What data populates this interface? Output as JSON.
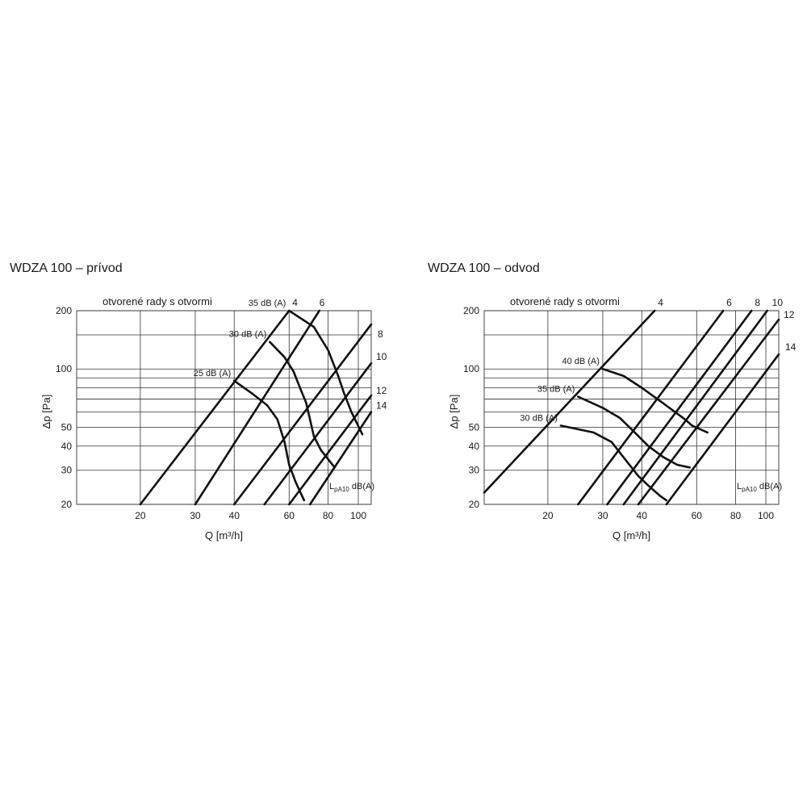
{
  "chart_data": [
    {
      "type": "line",
      "title": "WDZA 100 – prívod",
      "subtitle": "otvorené rady s otvormi",
      "xlabel": "Q [m³/h]",
      "ylabel": "Δp [Pa]",
      "xscale": "log",
      "yscale": "log",
      "xlim": [
        12.5,
        110
      ],
      "ylim": [
        20,
        200
      ],
      "x_ticks": [
        20,
        30,
        40,
        60,
        80,
        100
      ],
      "y_ticks": [
        20,
        30,
        40,
        50,
        100,
        200
      ],
      "y_grid": [
        20,
        30,
        40,
        50,
        60,
        70,
        80,
        90,
        100,
        150,
        200
      ],
      "note": {
        "base": "L",
        "sub": "pA10",
        "suffix": " dB(A)"
      },
      "series": [
        {
          "name": "4",
          "points": [
            [
              20,
              20
            ],
            [
              60,
              200
            ]
          ]
        },
        {
          "name": "6",
          "points": [
            [
              30,
              20
            ],
            [
              75,
              200
            ]
          ]
        },
        {
          "name": "8",
          "points": [
            [
              40,
              20
            ],
            [
              110,
              170
            ]
          ]
        },
        {
          "name": "10",
          "points": [
            [
              50,
              20
            ],
            [
              110,
              107
            ]
          ]
        },
        {
          "name": "12",
          "points": [
            [
              60,
              20
            ],
            [
              110,
              73
            ]
          ]
        },
        {
          "name": "14",
          "points": [
            [
              70,
              20
            ],
            [
              110,
              60
            ]
          ]
        }
      ],
      "noise_curves": [
        {
          "label": "35 dB (A)",
          "points": [
            [
              60,
              200
            ],
            [
              72,
              165
            ],
            [
              80,
              125
            ],
            [
              86,
              93
            ],
            [
              90,
              75
            ],
            [
              95,
              60
            ],
            [
              103,
              46
            ]
          ]
        },
        {
          "label": "30 dB (A)",
          "points": [
            [
              52,
              138
            ],
            [
              58,
              115
            ],
            [
              62,
              97
            ],
            [
              65,
              80
            ],
            [
              68,
              67
            ],
            [
              70,
              55
            ],
            [
              72,
              45
            ],
            [
              76,
              38
            ],
            [
              84,
              31
            ]
          ]
        },
        {
          "label": "25 dB (A)",
          "points": [
            [
              40,
              87
            ],
            [
              46,
              74
            ],
            [
              51,
              65
            ],
            [
              55,
              55
            ],
            [
              58,
              42
            ],
            [
              60,
              32
            ],
            [
              63,
              26
            ],
            [
              67,
              21
            ]
          ]
        }
      ]
    },
    {
      "type": "line",
      "title": "WDZA 100 – odvod",
      "subtitle": "otvorené rady s otvormi",
      "xlabel": "Q [m³/h]",
      "ylabel": "Δp [Pa]",
      "xscale": "log",
      "yscale": "log",
      "xlim": [
        12.5,
        110
      ],
      "ylim": [
        20,
        200
      ],
      "x_ticks": [
        20,
        30,
        40,
        60,
        80,
        100
      ],
      "y_ticks": [
        20,
        30,
        40,
        50,
        100,
        200
      ],
      "y_grid": [
        20,
        30,
        40,
        50,
        60,
        70,
        80,
        90,
        100,
        150,
        200
      ],
      "note": {
        "base": "L",
        "sub": "pA10",
        "suffix": " dB(A)"
      },
      "series": [
        {
          "name": "4",
          "points": [
            [
              12.5,
              23
            ],
            [
              44,
              200
            ]
          ]
        },
        {
          "name": "6",
          "points": [
            [
              25,
              20
            ],
            [
              73,
              200
            ]
          ]
        },
        {
          "name": "8",
          "points": [
            [
              31,
              20
            ],
            [
              90,
              200
            ]
          ]
        },
        {
          "name": "10",
          "points": [
            [
              35,
              20
            ],
            [
              101,
              200
            ]
          ]
        },
        {
          "name": "12",
          "points": [
            [
              39,
              20
            ],
            [
              110,
              180
            ]
          ]
        },
        {
          "name": "14",
          "points": [
            [
              48,
              20
            ],
            [
              110,
              119
            ]
          ]
        }
      ],
      "noise_curves": [
        {
          "label": "40 dB (A)",
          "points": [
            [
              30,
              100
            ],
            [
              35,
              92
            ],
            [
              40,
              80
            ],
            [
              46,
              68
            ],
            [
              55,
              55
            ],
            [
              58,
              51
            ],
            [
              65,
              47
            ]
          ]
        },
        {
          "label": "35 dB (A)",
          "points": [
            [
              25,
              72
            ],
            [
              30,
              63
            ],
            [
              34,
              56
            ],
            [
              38,
              47
            ],
            [
              42,
              40
            ],
            [
              47,
              35
            ],
            [
              52,
              32
            ],
            [
              57,
              31
            ]
          ]
        },
        {
          "label": "30 dB (A)",
          "points": [
            [
              22,
              51
            ],
            [
              28,
              47
            ],
            [
              32,
              42
            ],
            [
              36,
              33
            ],
            [
              39,
              28
            ],
            [
              42,
              25
            ],
            [
              46,
              22
            ],
            [
              48,
              21
            ]
          ]
        }
      ]
    }
  ]
}
